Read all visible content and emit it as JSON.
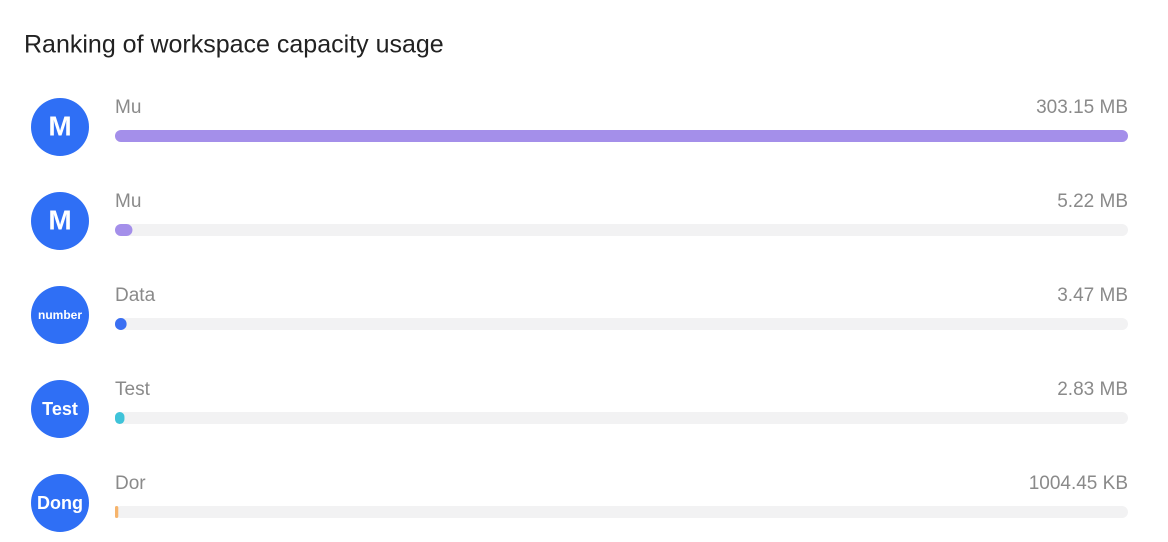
{
  "chart_data": {
    "type": "bar",
    "title": "Ranking of workspace capacity usage",
    "avatars": [
      "M",
      "M",
      "number",
      "Test",
      "Dong"
    ],
    "categories": [
      "Mu",
      "Mu",
      "Data",
      "Test",
      "Dor"
    ],
    "values": [
      303.15,
      5.22,
      3.47,
      2.83,
      0.98091
    ],
    "value_labels": [
      "303.15 MB",
      "5.22 MB",
      "3.47 MB",
      "2.83 MB",
      "1004.45 KB"
    ],
    "colors": [
      "#a48fea",
      "#a48fea",
      "#3a6ff2",
      "#3fc3d9",
      "#f6b46c"
    ],
    "avatar_color": "#2f6ff5",
    "xlim": [
      0,
      303.15
    ]
  }
}
